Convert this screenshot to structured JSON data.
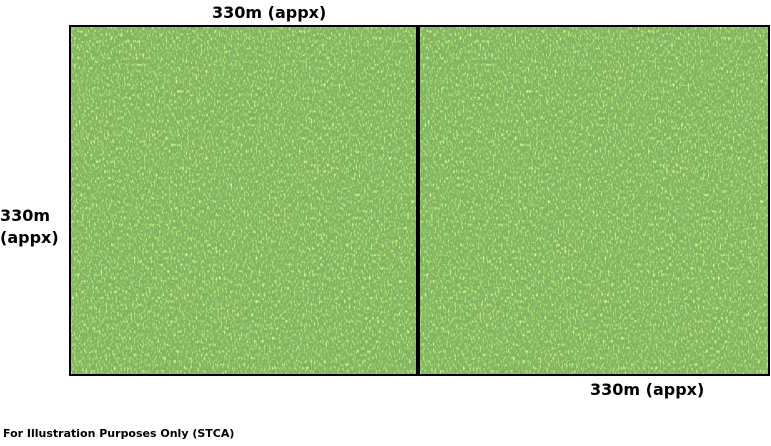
{
  "labels": {
    "top_dimension": "330m (appx)",
    "left_dimension_line1": "330m",
    "left_dimension_line2": "(appx)",
    "bottom_dimension": "330m (appx)",
    "note": "For Illustration Purposes Only (STCA)"
  },
  "fields": [
    {
      "name": "left-field",
      "fill": "grass"
    },
    {
      "name": "right-field",
      "fill": "grass"
    }
  ],
  "colors": {
    "grass": "#5fa83a",
    "border": "#000000"
  }
}
